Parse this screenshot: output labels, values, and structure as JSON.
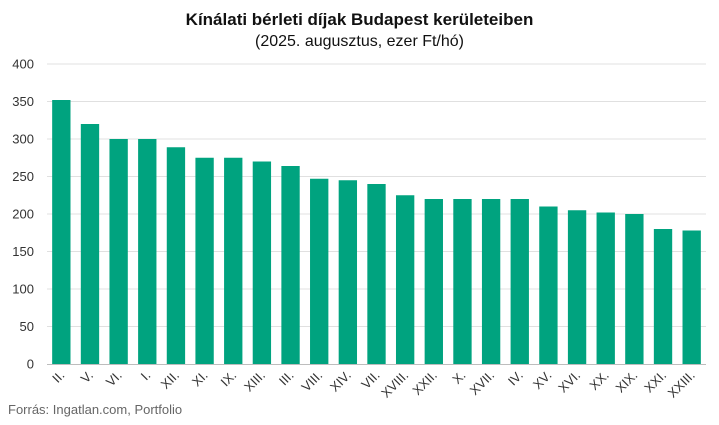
{
  "header": {
    "title": "Kínálati bérleti díjak Budapest kerületeiben",
    "subtitle": "(2025. augusztus, ezer Ft/hó)"
  },
  "footer": {
    "source": "Forrás: Ingatlan.com, Portfolio"
  },
  "colors": {
    "bar": "#00a37f",
    "grid": "#e0e0e0",
    "axis": "#bdbdbd"
  },
  "chart_data": {
    "type": "bar",
    "title": "Kínálati bérleti díjak Budapest kerületeiben",
    "subtitle": "(2025. augusztus, ezer Ft/hó)",
    "xlabel": "",
    "ylabel": "",
    "ylim": [
      0,
      400
    ],
    "yticks": [
      0,
      50,
      100,
      150,
      200,
      250,
      300,
      350,
      400
    ],
    "grid": true,
    "legend": "none",
    "categories": [
      "II.",
      "V.",
      "VI.",
      "I.",
      "XII.",
      "XI.",
      "IX.",
      "XIII.",
      "III.",
      "VIII.",
      "XIV.",
      "VII.",
      "XVIII.",
      "XXII.",
      "X.",
      "XVII.",
      "IV.",
      "XV.",
      "XVI.",
      "XX.",
      "XIX.",
      "XXI.",
      "XXIII."
    ],
    "values": [
      352,
      320,
      300,
      300,
      289,
      275,
      275,
      270,
      264,
      247,
      245,
      240,
      225,
      220,
      220,
      220,
      220,
      210,
      205,
      202,
      200,
      180,
      178
    ]
  }
}
